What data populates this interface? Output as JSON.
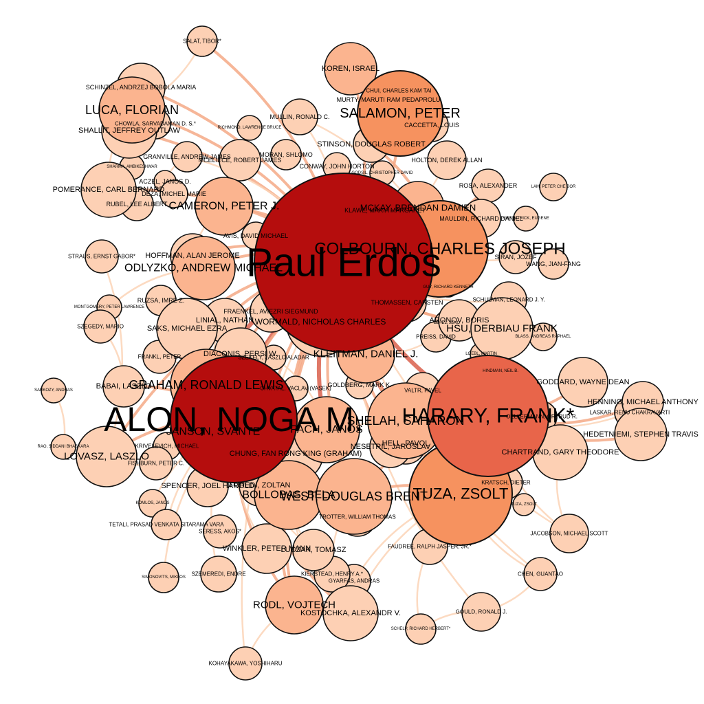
{
  "palette": {
    "edge_light": "#fbd3b6",
    "edge_mid": "#f4a986",
    "edge_dark": "#d9604c",
    "node_1": "#fdd0b4",
    "node_2": "#fbb48f",
    "node_3": "#f6925f",
    "node_4": "#e8654a",
    "node_5": "#b50d0d",
    "node_stroke": "#111111"
  },
  "nodes": [
    {
      "id": "erdos",
      "label": "Paul Erdos",
      "level": 5
    },
    {
      "id": "alon",
      "label": "ALON, NOGA M.",
      "level": 5
    },
    {
      "id": "harary",
      "label": "HARARY, FRANK*",
      "level": 4
    },
    {
      "id": "colbourn",
      "label": "COLBOURN, CHARLES JOSEPH",
      "level": 3
    },
    {
      "id": "tuza",
      "label": "TUZA, ZSOLT",
      "level": 3
    },
    {
      "id": "salamon",
      "label": "SALAMON, PETER",
      "level": 3
    },
    {
      "id": "shelah",
      "label": "SHELAH, SAHARON",
      "level": 2
    },
    {
      "id": "graham",
      "label": "GRAHAM, RONALD LEWIS",
      "level": 2
    },
    {
      "id": "bollobas",
      "label": "BOLLOBAS, BELA",
      "level": 2
    },
    {
      "id": "west",
      "label": "WEST, DOUGLAS BRENT",
      "level": 2
    },
    {
      "id": "pach",
      "label": "PACH, JANOS",
      "level": 2
    },
    {
      "id": "kleitman",
      "label": "KLEITMAN, DANIEL J.",
      "level": 2
    },
    {
      "id": "luca",
      "label": "LUCA, FLORIAN",
      "level": 2
    },
    {
      "id": "cameron",
      "label": "CAMERON, PETER J.",
      "level": 2
    },
    {
      "id": "odlyzko",
      "label": "ODLYZKO, ANDREW MICHAEL",
      "level": 2
    },
    {
      "id": "janson",
      "label": "JANSON, SVANTE",
      "level": 2
    },
    {
      "id": "mckay",
      "label": "MCKAY, BRENDAN DAMIEN",
      "level": 2
    },
    {
      "id": "hsu",
      "label": "HSU, DERBIAU FRANK",
      "level": 1
    },
    {
      "id": "rodl",
      "label": "RODL, VOJTECH",
      "level": 2
    },
    {
      "id": "lovasz",
      "label": "LOVASZ, LASZLO",
      "level": 1
    },
    {
      "id": "koren",
      "label": "KOREN, ISRAEL",
      "level": 2
    },
    {
      "id": "stinson",
      "label": "STINSON, DOUGLAS ROBERT",
      "level": 1
    },
    {
      "id": "wormald",
      "label": "WORMALD, NICHOLAS CHARLES",
      "level": 1
    },
    {
      "id": "chung",
      "label": "CHUNG, FAN RONG KING (GRAHAM)",
      "level": 1
    },
    {
      "id": "diaconis",
      "label": "DIACONIS, PERSI W.",
      "level": 1
    },
    {
      "id": "saks",
      "label": "SAKS, MICHAEL EZRA",
      "level": 1
    },
    {
      "id": "spencer",
      "label": "SPENCER, JOEL HAROLD",
      "level": 1
    },
    {
      "id": "furedi",
      "label": "FUREDI, ZOLTAN",
      "level": 1
    },
    {
      "id": "hell",
      "label": "HELL, PAVOL",
      "level": 1
    },
    {
      "id": "nesetril",
      "label": "NESETRIL, JAROSLAV",
      "level": 1
    },
    {
      "id": "chartrand",
      "label": "CHARTRAND, GARY THEODORE",
      "level": 1
    },
    {
      "id": "hedetniemi",
      "label": "HEDETNIEMI, STEPHEN TRAVIS",
      "level": 1
    },
    {
      "id": "goddard",
      "label": "GODDARD, WAYNE DEAN",
      "level": 1
    },
    {
      "id": "henning",
      "label": "HENNING, MICHAEL ANTHONY",
      "level": 1
    },
    {
      "id": "kostochka",
      "label": "KOSTOCHKA, ALEXANDR V.",
      "level": 1
    },
    {
      "id": "winkler",
      "label": "WINKLER, PETER MANN",
      "level": 1
    },
    {
      "id": "luczak",
      "label": "LUCZAK, TOMASZ",
      "level": 1
    },
    {
      "id": "babai",
      "label": "BABAI, LASZLO",
      "level": 1
    },
    {
      "id": "shallit",
      "label": "SHALLIT, JEFFREY OUTLAW",
      "level": 1
    },
    {
      "id": "pomerance",
      "label": "POMERANCE, CARL BERNARD",
      "level": 1
    },
    {
      "id": "schinzel",
      "label": "SCHINZEL, ANDRZEJ BOBOLA MARIA",
      "level": 1
    },
    {
      "id": "hoffman",
      "label": "HOFFMAN, ALAN JEROME",
      "level": 1
    },
    {
      "id": "linial",
      "label": "LINIAL, NATHAN",
      "level": 1
    },
    {
      "id": "fraenkel",
      "label": "FRAENKEL, AVIEZRI SIEGMUND",
      "level": 1
    },
    {
      "id": "aronov",
      "label": "ARONOV, BORIS",
      "level": 1
    },
    {
      "id": "thomassen",
      "label": "THOMASSEN, CARSTEN",
      "level": 1
    },
    {
      "id": "schulman",
      "label": "SCHULMAN, LEONARD J. Y.",
      "level": 1
    },
    {
      "id": "rosa",
      "label": "ROSA, ALEXANDER",
      "level": 1
    },
    {
      "id": "mauldin",
      "label": "MAULDIN, RICHARD DANIEL",
      "level": 1
    },
    {
      "id": "siran",
      "label": "SIRAN, JOZEF",
      "level": 1
    },
    {
      "id": "wang",
      "label": "WANG, JIAN-FANG",
      "level": 1
    },
    {
      "id": "klawe",
      "label": "KLAWE, MARIA MARGARET",
      "level": 1
    },
    {
      "id": "mullin",
      "label": "MULLIN, RONALD C.",
      "level": 1
    },
    {
      "id": "moran",
      "label": "MORAN, SHLOMO",
      "level": 1
    },
    {
      "id": "mceliece",
      "label": "MCELIECE, ROBERT JAMES",
      "level": 1
    },
    {
      "id": "granville",
      "label": "GRANVILLE, ANDREW JAMES",
      "level": 1
    },
    {
      "id": "conway",
      "label": "CONWAY, JOHN HORTON",
      "level": 1
    },
    {
      "id": "holton",
      "label": "HOLTON, DEREK ALLAN",
      "level": 1
    },
    {
      "id": "caccetta",
      "label": "CACCETTA, LOUIS",
      "level": 1
    },
    {
      "id": "murty",
      "label": "MURTY, MARUTI RAM PEDAPROLU",
      "level": 1
    },
    {
      "id": "chui",
      "label": "CHUI, CHARLES KAM TAI",
      "level": 1
    },
    {
      "id": "salat",
      "label": "SALAT, TIBOR*",
      "level": 1
    },
    {
      "id": "chowla",
      "label": "CHOWLA, SARVADAMAN D. S.*",
      "level": 1
    },
    {
      "id": "rubel",
      "label": "RUBEL, LEE ALBERT",
      "level": 1
    },
    {
      "id": "deza",
      "label": "DEZA, MICHEL MARIE",
      "level": 1
    },
    {
      "id": "aczel",
      "label": "ACZEL, JANOS D.",
      "level": 1
    },
    {
      "id": "avis",
      "label": "AVIS, DAVID MICHAEL",
      "level": 1
    },
    {
      "id": "straus",
      "label": "STRAUS, ERNST GABOR*",
      "level": 1
    },
    {
      "id": "ruzsa",
      "label": "RUZSA, IMRE Z.",
      "level": 1
    },
    {
      "id": "szegedy",
      "label": "SZEGEDY, MARIO",
      "level": 1
    },
    {
      "id": "frankl",
      "label": "FRANKL, PETER",
      "level": 1
    },
    {
      "id": "szekely",
      "label": "SZEKELY, LASZLO ALADAR",
      "level": 1
    },
    {
      "id": "preiss",
      "label": "PREISS, DAVID",
      "level": 1
    },
    {
      "id": "valtr",
      "label": "VALTR, PAVEL",
      "level": 1
    },
    {
      "id": "goldberg",
      "label": "GOLDBERG, MARK K.",
      "level": 1
    },
    {
      "id": "chvatal",
      "label": "CHVATAL, VACLAV (VASEK)",
      "level": 1
    },
    {
      "id": "fishburn",
      "label": "FISHBURN, PETER C.",
      "level": 1
    },
    {
      "id": "krivelevich",
      "label": "KRIVELEVICH, MICHAEL",
      "level": 1
    },
    {
      "id": "tetali",
      "label": "TETALI, PRASAD VENKATA SITARAMA VARA",
      "level": 1
    },
    {
      "id": "seress",
      "label": "SERESS, AKOS*",
      "level": 1
    },
    {
      "id": "trotter",
      "label": "TROTTER, WILLIAM THOMAS",
      "level": 1
    },
    {
      "id": "kratsch",
      "label": "KRATSCH, DIETER",
      "level": 1
    },
    {
      "id": "faudree",
      "label": "FAUDREE, RALPH JASPER, JR.*",
      "level": 1
    },
    {
      "id": "jacobson",
      "label": "JACOBSON, MICHAEL SCOTT",
      "level": 1
    },
    {
      "id": "szemeredi",
      "label": "SZEMEREDI, ENDRE",
      "level": 1
    },
    {
      "id": "kierstead",
      "label": "KIERSTEAD, HENRY A.*",
      "level": 1
    },
    {
      "id": "gyarfas",
      "label": "GYARFAS, ANDRAS",
      "level": 1
    },
    {
      "id": "chen",
      "label": "CHEN, GUANTAO",
      "level": 1
    },
    {
      "id": "gould",
      "label": "GOULD, RONALD J.",
      "level": 1
    },
    {
      "id": "schelp",
      "label": "SCHELP, RICHARD HERBERT*",
      "level": 1
    },
    {
      "id": "kohayakawa",
      "label": "KOHAYAKAWA, YOSHIHARU",
      "level": 1
    },
    {
      "id": "simonovits",
      "label": "SIMONOVITS, MIKLOS",
      "level": 1
    },
    {
      "id": "komlos",
      "label": "KOMLOS, JANOS",
      "level": 1
    },
    {
      "id": "rao",
      "label": "RAO, SIDDANI BHASKARA",
      "level": 1
    },
    {
      "id": "sarkozy",
      "label": "SARKOZY, ANDRAS",
      "level": 1
    },
    {
      "id": "laskar",
      "label": "LASKAR, RENU CHAKRAVARTI",
      "level": 1
    },
    {
      "id": "oellermann",
      "label": "OELLERMANN, ORTRUD R.",
      "level": 1
    },
    {
      "id": "blass",
      "label": "BLASS, ANDREAS RAPHAEL",
      "level": 1
    },
    {
      "id": "hindman",
      "label": "HINDMAN, NEIL B.",
      "level": 1
    },
    {
      "id": "guy",
      "label": "GUY, RICHARD KENNETH",
      "level": 1
    },
    {
      "id": "lam",
      "label": "LAM, PETER CHE BOR",
      "level": 1
    },
    {
      "id": "kirkpatrick",
      "label": "KIRKPATRICK, EUGENE",
      "level": 1
    },
    {
      "id": "richmond",
      "label": "RICHMOND, LAWRENCE BRUCE",
      "level": 1
    },
    {
      "id": "sharma",
      "label": "SHARMA, AMBIKESHWAR",
      "level": 1
    },
    {
      "id": "montgomery",
      "label": "MONTGOMERY, PETER LAWRENCE",
      "level": 1
    },
    {
      "id": "godsil",
      "label": "GODSIL, CHRISTOPHER DAVID",
      "level": 1
    },
    {
      "id": "lehel",
      "label": "LEHEL, JENO",
      "level": 1
    },
    {
      "id": "tuzolt",
      "label": "TUZA, ZSOLT",
      "level": 1
    },
    {
      "id": "loebl",
      "label": "LOEBL, MARTIN",
      "level": 1
    }
  ],
  "edges": [
    [
      "erdos",
      "alon",
      3
    ],
    [
      "erdos",
      "harary",
      3
    ],
    [
      "erdos",
      "colbourn",
      3
    ],
    [
      "erdos",
      "graham",
      3
    ],
    [
      "erdos",
      "pach",
      3
    ],
    [
      "erdos",
      "shelah",
      3
    ],
    [
      "erdos",
      "bollobas",
      2
    ],
    [
      "erdos",
      "west",
      2
    ],
    [
      "erdos",
      "tuza",
      2
    ],
    [
      "erdos",
      "kleitman",
      2
    ],
    [
      "erdos",
      "salamon",
      2
    ],
    [
      "erdos",
      "cameron",
      2
    ],
    [
      "erdos",
      "odlyzko",
      2
    ],
    [
      "erdos",
      "luca",
      2
    ],
    [
      "erdos",
      "mckay",
      2
    ],
    [
      "erdos",
      "koren",
      2
    ],
    [
      "erdos",
      "stinson",
      2
    ],
    [
      "erdos",
      "wormald",
      2
    ],
    [
      "erdos",
      "rodl",
      2
    ],
    [
      "erdos",
      "lovasz",
      2
    ],
    [
      "erdos",
      "chung",
      2
    ],
    [
      "erdos",
      "spencer",
      2
    ],
    [
      "erdos",
      "furedi",
      2
    ],
    [
      "erdos",
      "hsu",
      2
    ],
    [
      "erdos",
      "hell",
      2
    ],
    [
      "erdos",
      "nesetril",
      2
    ],
    [
      "erdos",
      "diaconis",
      2
    ],
    [
      "erdos",
      "saks",
      2
    ],
    [
      "erdos",
      "linial",
      2
    ],
    [
      "erdos",
      "aronov",
      2
    ],
    [
      "erdos",
      "pomerance",
      2
    ],
    [
      "erdos",
      "shallit",
      2
    ],
    [
      "erdos",
      "hoffman",
      2
    ],
    [
      "erdos",
      "rosa",
      2
    ],
    [
      "erdos",
      "mauldin",
      2
    ],
    [
      "erdos",
      "schinzel",
      2
    ],
    [
      "erdos",
      "granville",
      1
    ],
    [
      "erdos",
      "mullin",
      1
    ],
    [
      "erdos",
      "conway",
      1
    ],
    [
      "erdos",
      "holton",
      1
    ],
    [
      "erdos",
      "avis",
      1
    ],
    [
      "erdos",
      "thomassen",
      1
    ],
    [
      "erdos",
      "schulman",
      1
    ],
    [
      "erdos",
      "salat",
      2
    ],
    [
      "erdos",
      "kohayakawa",
      1
    ],
    [
      "erdos",
      "gould",
      1
    ],
    [
      "erdos",
      "chen",
      1
    ],
    [
      "erdos",
      "jacobson",
      1
    ],
    [
      "alon",
      "graham",
      3
    ],
    [
      "alon",
      "janson",
      2
    ],
    [
      "alon",
      "spencer",
      2
    ],
    [
      "alon",
      "lovasz",
      2
    ],
    [
      "alon",
      "babai",
      2
    ],
    [
      "alon",
      "bollobas",
      2
    ],
    [
      "alon",
      "furedi",
      2
    ],
    [
      "alon",
      "rodl",
      2
    ],
    [
      "alon",
      "pach",
      2
    ],
    [
      "alon",
      "linial",
      2
    ],
    [
      "alon",
      "saks",
      2
    ],
    [
      "alon",
      "kostochka",
      2
    ],
    [
      "alon",
      "winkler",
      1
    ],
    [
      "alon",
      "luczak",
      1
    ],
    [
      "alon",
      "szemeredi",
      1
    ],
    [
      "alon",
      "simonovits",
      1
    ],
    [
      "alon",
      "komlos",
      1
    ],
    [
      "alon",
      "tetali",
      1
    ],
    [
      "harary",
      "hedetniemi",
      2
    ],
    [
      "harary",
      "chartrand",
      2
    ],
    [
      "harary",
      "goddard",
      2
    ],
    [
      "harary",
      "henning",
      2
    ],
    [
      "harary",
      "tuza",
      2
    ],
    [
      "harary",
      "west",
      2
    ],
    [
      "harary",
      "hell",
      1
    ],
    [
      "harary",
      "kratsch",
      1
    ],
    [
      "harary",
      "jacobson",
      1
    ],
    [
      "harary",
      "laskar",
      1
    ],
    [
      "harary",
      "oellermann",
      1
    ],
    [
      "harary",
      "hsu",
      2
    ],
    [
      "colbourn",
      "stinson",
      2
    ],
    [
      "colbourn",
      "mckay",
      2
    ],
    [
      "colbourn",
      "rosa",
      2
    ],
    [
      "colbourn",
      "mullin",
      1
    ],
    [
      "colbourn",
      "mauldin",
      1
    ],
    [
      "colbourn",
      "siran",
      1
    ],
    [
      "tuza",
      "west",
      2
    ],
    [
      "tuza",
      "hell",
      1
    ],
    [
      "tuza",
      "faudree",
      1
    ],
    [
      "tuza",
      "gyarfas",
      1
    ],
    [
      "tuza",
      "chen",
      1
    ],
    [
      "tuza",
      "kostochka",
      1
    ],
    [
      "bollobas",
      "rodl",
      2
    ],
    [
      "bollobas",
      "kostochka",
      1
    ],
    [
      "bollobas",
      "trotter",
      1
    ],
    [
      "bollobas",
      "luczak",
      1
    ],
    [
      "west",
      "kierstead",
      1
    ],
    [
      "west",
      "trotter",
      1
    ],
    [
      "graham",
      "chung",
      2
    ],
    [
      "graham",
      "diaconis",
      1
    ],
    [
      "graham",
      "frankl",
      1
    ],
    [
      "graham",
      "odlyzko",
      1
    ],
    [
      "cameron",
      "hoffman",
      1
    ],
    [
      "cameron",
      "deza",
      1
    ],
    [
      "luca",
      "shallit",
      1
    ],
    [
      "luca",
      "schinzel",
      1
    ],
    [
      "luca",
      "pomerance",
      1
    ],
    [
      "luca",
      "salat",
      1
    ],
    [
      "luca",
      "chowla",
      1
    ],
    [
      "salamon",
      "koren",
      1
    ],
    [
      "salamon",
      "caccetta",
      1
    ],
    [
      "salamon",
      "murty",
      1
    ],
    [
      "rodl",
      "kohayakawa",
      1
    ],
    [
      "rodl",
      "kostochka",
      1
    ],
    [
      "lovasz",
      "fishburn",
      1
    ],
    [
      "lovasz",
      "straus",
      1
    ],
    [
      "pach",
      "valtr",
      1
    ],
    [
      "pach",
      "szekely",
      1
    ],
    [
      "kleitman",
      "preiss",
      1
    ],
    [
      "kleitman",
      "goldberg",
      1
    ],
    [
      "shelah",
      "hell",
      1
    ],
    [
      "shelah",
      "nesetril",
      1
    ],
    [
      "gould",
      "chen",
      1
    ],
    [
      "gould",
      "schelp",
      1
    ],
    [
      "faudree",
      "schelp",
      1
    ],
    [
      "chartrand",
      "jacobson",
      1
    ],
    [
      "hedetniemi",
      "laskar",
      1
    ],
    [
      "rao",
      "sarkozy",
      1
    ],
    [
      "babai",
      "szegedy",
      1
    ],
    [
      "odlyzko",
      "montgomery",
      1
    ],
    [
      "pomerance",
      "rubel",
      1
    ],
    [
      "granville",
      "aczel",
      1
    ],
    [
      "hsu",
      "blass",
      1
    ],
    [
      "mckay",
      "klawe",
      1
    ]
  ]
}
